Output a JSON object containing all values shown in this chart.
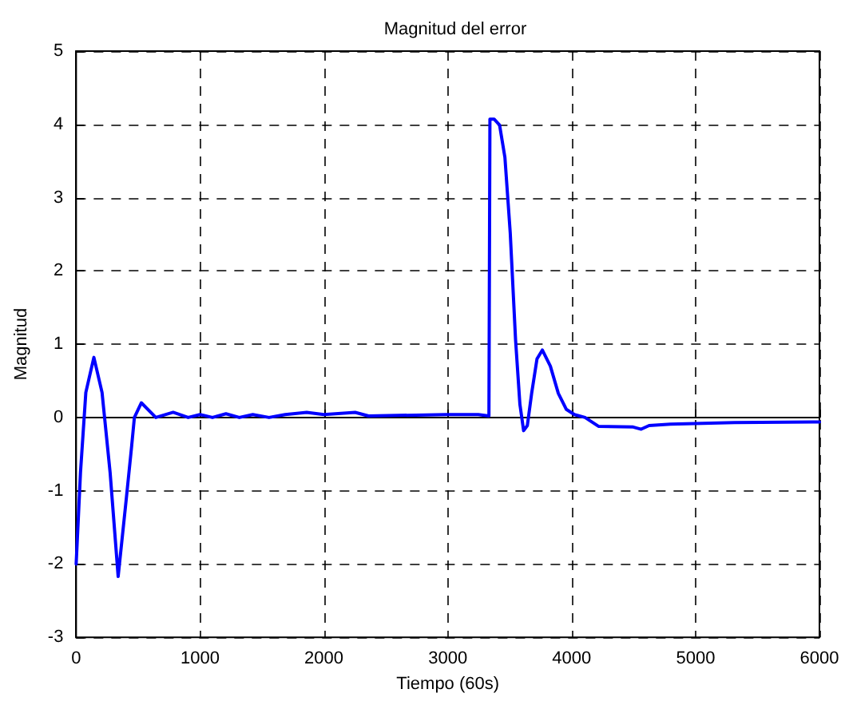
{
  "chart_data": {
    "type": "line",
    "title": "Magnitud del error",
    "xlabel": "Tiempo (60s)",
    "ylabel": "Magnitud",
    "series": [
      {
        "color": "#0000ff",
        "x": [
          0,
          35,
          78,
          143,
          209,
          274,
          339,
          404,
          448,
          470,
          526,
          643,
          783,
          904,
          1000,
          1100,
          1209,
          1317,
          1426,
          1557,
          1687,
          1861,
          2000,
          2252,
          2360,
          2987,
          3246,
          3332,
          3340,
          3375,
          3418,
          3461,
          3504,
          3547,
          3582,
          3612,
          3642,
          3677,
          3720,
          3763,
          3828,
          3892,
          3957,
          4022,
          4108,
          4216,
          4496,
          4561,
          4625,
          4797,
          5315,
          6000
        ],
        "values": [
          -2,
          -0.75,
          0.34,
          0.82,
          0.34,
          -0.75,
          -2.17,
          -1.12,
          -0.39,
          0,
          0.2,
          0,
          0.07,
          0,
          0.04,
          0,
          0.05,
          0,
          0.04,
          0,
          0.04,
          0.07,
          0.04,
          0.07,
          0.02,
          0.04,
          0.04,
          0.02,
          4.07,
          4.07,
          3.99,
          3.55,
          2.52,
          1.06,
          0.18,
          -0.18,
          -0.11,
          0.33,
          0.8,
          0.92,
          0.7,
          0.33,
          0.11,
          0.04,
          0,
          -0.12,
          -0.13,
          -0.16,
          -0.11,
          -0.09,
          -0.07,
          -0.06
        ]
      }
    ],
    "xlim": [
      0,
      6000
    ],
    "xticks": [
      0,
      1000,
      2000,
      3000,
      4000,
      5000,
      6000
    ],
    "ylim": [
      -3,
      5
    ],
    "yticks": [
      -3,
      -2,
      -1,
      0,
      1,
      2,
      3,
      4,
      5
    ],
    "grid": true,
    "marker": "none",
    "line_style": "solid"
  }
}
